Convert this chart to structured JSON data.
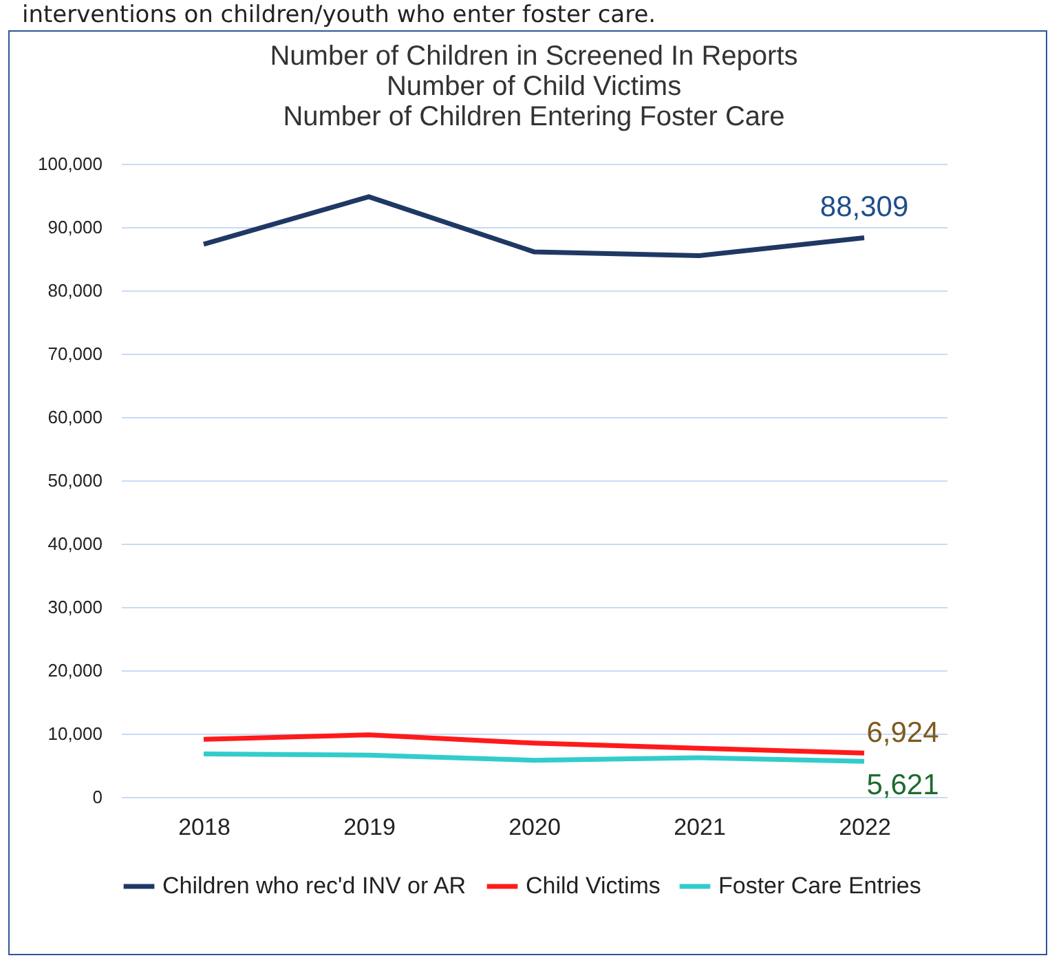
{
  "chart_data": {
    "type": "line",
    "title": "Number of Children in Screened In Reports\nNumber of Child Victims\nNumber of Children Entering Foster Care",
    "annotations": [
      "interventions on children/youth who enter foster care."
    ],
    "categories": [
      "2018",
      "2019",
      "2020",
      "2021",
      "2022"
    ],
    "series": [
      {
        "name": "Children who rec'd INV or AR",
        "color": "#1f3864",
        "values": [
          87300,
          94800,
          86100,
          85500,
          88309
        ],
        "value_labels": [
          null,
          null,
          null,
          null,
          "88,309"
        ]
      },
      {
        "name": "Child Victims",
        "color": "#ff1a1a",
        "values": [
          9100,
          9800,
          8500,
          7700,
          6924
        ],
        "value_labels": [
          null,
          null,
          null,
          null,
          "6,924"
        ]
      },
      {
        "name": "Foster Care Entries",
        "color": "#33cccc",
        "values": [
          6800,
          6600,
          5800,
          6200,
          5621
        ],
        "value_labels": [
          null,
          null,
          null,
          null,
          "5,621"
        ]
      }
    ],
    "ylim": [
      0,
      100000
    ],
    "yticks": [
      0,
      {
        "value": 10000,
        "label": "10,000"
      },
      {
        "value": 20000,
        "label": "20,000"
      },
      {
        "value": 30000,
        "label": "30,000"
      },
      {
        "value": 40000,
        "label": "40,000"
      },
      {
        "value": 50000,
        "label": "50,000"
      },
      {
        "value": 60000,
        "label": "60,000"
      },
      {
        "value": 70000,
        "label": "70,000"
      },
      {
        "value": 80000,
        "label": "80,000"
      },
      {
        "value": 90000,
        "label": "90,000"
      },
      {
        "value": 100000,
        "label": "100,000"
      }
    ],
    "grid": "y",
    "legend": "bottom",
    "marker": "none",
    "line_style": "solid"
  }
}
